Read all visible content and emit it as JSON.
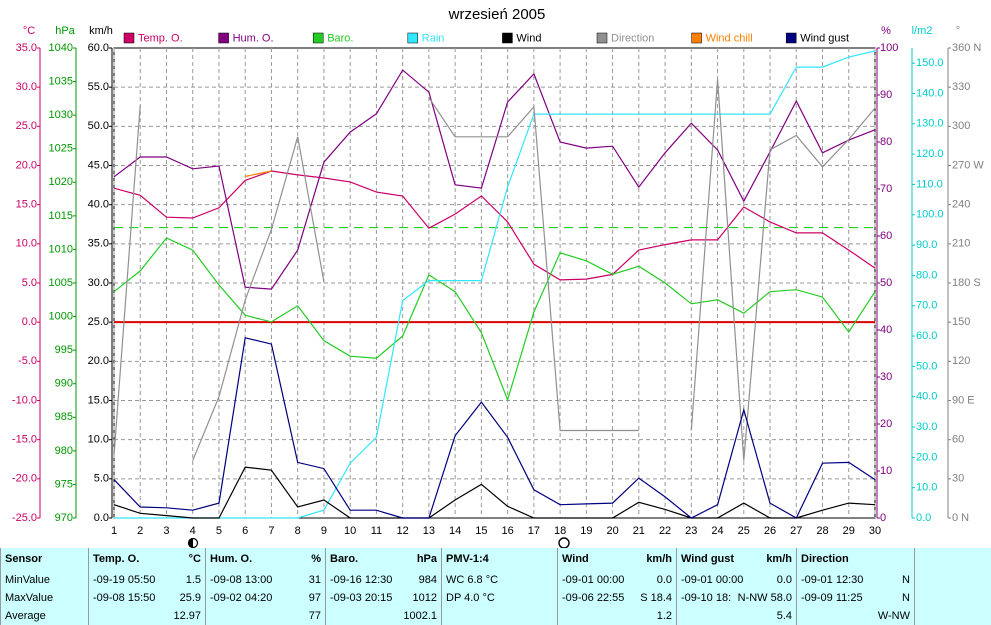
{
  "chart_data": {
    "type": "line",
    "title": "wrzesień 2005",
    "x": [
      1,
      2,
      3,
      4,
      5,
      6,
      7,
      8,
      9,
      10,
      11,
      12,
      13,
      14,
      15,
      16,
      17,
      18,
      19,
      20,
      21,
      22,
      23,
      24,
      25,
      26,
      27,
      28,
      29,
      30
    ],
    "xlim": [
      1,
      30
    ],
    "axes": [
      {
        "unit": "°C",
        "side": "left",
        "color": "#cc0066",
        "lim": [
          -25,
          35
        ],
        "ticks": [
          {
            "value": -25,
            "label": "-25.0"
          },
          {
            "value": -20,
            "label": "-20.0"
          },
          {
            "value": -15,
            "label": "-15.0"
          },
          {
            "value": -10,
            "label": "-10.0"
          },
          {
            "value": -5,
            "label": "-5.0"
          },
          {
            "value": 0,
            "label": "0.0"
          },
          {
            "value": 5,
            "label": "5.0"
          },
          {
            "value": 10,
            "label": "10.0"
          },
          {
            "value": 15,
            "label": "15.0"
          },
          {
            "value": 20,
            "label": "20.0"
          },
          {
            "value": 25,
            "label": "25.0"
          },
          {
            "value": 30,
            "label": "30.0"
          },
          {
            "value": 35,
            "label": "35.0"
          }
        ]
      },
      {
        "unit": "hPa",
        "side": "left",
        "color": "#009900",
        "lim": [
          970,
          1040
        ],
        "ticks": [
          970,
          975,
          980,
          985,
          990,
          995,
          1000,
          1005,
          1010,
          1015,
          1020,
          1025,
          1030,
          1035,
          1040
        ]
      },
      {
        "unit": "km/h",
        "side": "left",
        "color": "#000000",
        "lim": [
          0,
          60
        ],
        "grid": true,
        "ticks": [
          {
            "value": 0,
            "label": "0.0"
          },
          {
            "value": 5,
            "label": "5.0"
          },
          {
            "value": 10,
            "label": "10.0"
          },
          {
            "value": 15,
            "label": "15.0"
          },
          {
            "value": 20,
            "label": "20.0"
          },
          {
            "value": 25,
            "label": "25.0"
          },
          {
            "value": 30,
            "label": "30.0"
          },
          {
            "value": 35,
            "label": "35.0"
          },
          {
            "value": 40,
            "label": "40.0"
          },
          {
            "value": 45,
            "label": "45.0"
          },
          {
            "value": 50,
            "label": "50.0"
          },
          {
            "value": 55,
            "label": "55.0"
          },
          {
            "value": 60,
            "label": "60.0"
          }
        ]
      },
      {
        "unit": "%",
        "side": "right",
        "color": "#800080",
        "lim": [
          0,
          100
        ],
        "ticks": [
          0,
          10,
          20,
          30,
          40,
          50,
          60,
          70,
          80,
          90,
          100
        ]
      },
      {
        "unit": "l/m2",
        "side": "right",
        "color": "#00cccc",
        "lim": [
          0,
          155
        ],
        "ticks": [
          {
            "value": 0,
            "label": "0.0"
          },
          {
            "value": 10,
            "label": "10.0"
          },
          {
            "value": 20,
            "label": "20.0"
          },
          {
            "value": 30,
            "label": "30.0"
          },
          {
            "value": 40,
            "label": "40.0"
          },
          {
            "value": 50,
            "label": "50.0"
          },
          {
            "value": 60,
            "label": "60.0"
          },
          {
            "value": 70,
            "label": "70.0"
          },
          {
            "value": 80,
            "label": "80.0"
          },
          {
            "value": 90,
            "label": "90.0"
          },
          {
            "value": 100,
            "label": "100.0"
          },
          {
            "value": 110,
            "label": "110.0"
          },
          {
            "value": 120,
            "label": "120.0"
          },
          {
            "value": 130,
            "label": "130.0"
          },
          {
            "value": 140,
            "label": "140.0"
          },
          {
            "value": 150,
            "label": "150.0"
          }
        ]
      },
      {
        "unit": "°",
        "side": "right",
        "color": "#808080",
        "lim": [
          0,
          360
        ],
        "ticks": [
          {
            "value": 0,
            "label": "0 N"
          },
          30,
          60,
          {
            "value": 90,
            "label": "90 E"
          },
          120,
          150,
          {
            "value": 180,
            "label": "180 S"
          },
          210,
          240,
          {
            "value": 270,
            "label": "270 W"
          },
          300,
          330,
          {
            "value": 360,
            "label": "360 N"
          }
        ]
      }
    ],
    "reference_lines": [
      {
        "axis": 0,
        "value": 0,
        "color": "#dd0000",
        "dashed": false
      },
      {
        "axis": 1,
        "value": 1013.25,
        "color": "#00cc00",
        "dashed": true
      }
    ],
    "series": [
      {
        "name": "Temp. O.",
        "color": "#cc0066",
        "axis": 0,
        "values": [
          17.1,
          16.2,
          13.4,
          13.3,
          14.6,
          18.1,
          19.3,
          18.8,
          18.4,
          17.9,
          16.6,
          16.1,
          12.0,
          13.8,
          16.1,
          12.8,
          7.4,
          5.4,
          5.5,
          6.1,
          9.2,
          9.9,
          10.5,
          10.5,
          14.7,
          12.8,
          11.4,
          11.4,
          9.2,
          6.9
        ]
      },
      {
        "name": "Hum. O.",
        "color": "#800080",
        "axis": 3,
        "values": [
          72.6,
          76.8,
          76.8,
          74.3,
          74.9,
          49.1,
          48.7,
          57.0,
          75.7,
          82.1,
          86.0,
          95.3,
          90.6,
          70.9,
          70.2,
          88.5,
          94.5,
          80.0,
          78.7,
          79.1,
          70.4,
          77.7,
          84.0,
          78.3,
          67.4,
          77.9,
          88.7,
          77.7,
          80.4,
          82.6
        ]
      },
      {
        "name": "Baro.",
        "color": "#22cc22",
        "axis": 1,
        "values": [
          1003.7,
          1006.8,
          1011.7,
          1009.9,
          1004.7,
          1000.2,
          999.2,
          1001.6,
          996.4,
          994.1,
          993.8,
          997.1,
          1006.2,
          1003.7,
          997.6,
          987.6,
          1000.7,
          1009.5,
          1008.3,
          1006.3,
          1007.5,
          1005.0,
          1001.9,
          1002.5,
          1000.5,
          1003.7,
          1004.0,
          1002.9,
          997.7,
          1003.7
        ]
      },
      {
        "name": "Rain",
        "color": "#33e6ff",
        "axis": 4,
        "values": [
          0,
          0,
          0,
          0,
          0,
          0,
          0,
          0,
          2.6,
          18.1,
          26.6,
          71.7,
          78.3,
          78.3,
          78.3,
          109.2,
          133.2,
          133.2,
          133.2,
          133.2,
          133.2,
          133.2,
          133.2,
          133.2,
          133.2,
          133.2,
          148.7,
          148.7,
          152.0,
          154.0
        ]
      },
      {
        "name": "Wind",
        "color": "#000000",
        "axis": 2,
        "values": [
          1.7,
          0.6,
          0.3,
          0,
          0,
          6.5,
          6.1,
          1.4,
          2.3,
          0,
          0,
          0,
          0,
          2.3,
          4.3,
          1.5,
          0,
          0,
          0,
          0,
          2.0,
          1.1,
          0,
          0,
          1.9,
          0,
          0,
          1.0,
          1.9,
          1.7
        ]
      },
      {
        "name": "Direction",
        "color": "#909090",
        "axis": 5,
        "values": [
          48,
          316,
          null,
          44,
          93,
          167,
          221,
          292,
          181,
          null,
          null,
          null,
          322,
          292,
          292,
          292,
          315,
          67,
          67,
          67,
          67,
          null,
          67,
          336,
          44,
          282,
          293,
          269,
          290,
          314
        ]
      },
      {
        "name": "Wind chill",
        "color": "#ff8000",
        "axis": 0,
        "values": [
          null,
          null,
          null,
          null,
          null,
          18.6,
          19.3,
          null,
          null,
          null,
          null,
          null,
          null,
          null,
          null,
          null,
          null,
          null,
          null,
          null,
          null,
          null,
          null,
          null,
          null,
          null,
          null,
          null,
          null,
          null
        ]
      },
      {
        "name": "Wind gust",
        "color": "#000080",
        "axis": 2,
        "values": [
          4.9,
          1.4,
          1.3,
          1.0,
          1.9,
          23.0,
          22.2,
          7.1,
          6.3,
          1.0,
          1.0,
          0,
          0,
          10.5,
          14.8,
          10.3,
          3.6,
          1.7,
          1.8,
          1.9,
          5.1,
          2.7,
          0,
          1.7,
          13.8,
          1.9,
          0,
          7.0,
          7.1,
          4.9
        ]
      }
    ]
  },
  "table": {
    "header": [
      {
        "left": "Sensor"
      },
      {
        "left": "Temp. O.",
        "right": "°C"
      },
      {
        "left": "Hum. O.",
        "right": "%"
      },
      {
        "left": "Baro.",
        "right": "hPa"
      },
      {
        "left": "PMV-1:4"
      },
      {
        "left": "Wind",
        "right": "km/h"
      },
      {
        "left": "Wind gust",
        "right": "km/h"
      },
      {
        "left": "Direction"
      }
    ],
    "rows": [
      [
        {
          "left": "MinValue"
        },
        {
          "left": "-09-19 05:50",
          "right": "1.5"
        },
        {
          "left": "-09-08 13:00",
          "right": "31"
        },
        {
          "left": "-09-16 12:30",
          "right": "984"
        },
        {
          "left": "WC 6.8 °C"
        },
        {
          "left": "-09-01 00:00",
          "right": "0.0"
        },
        {
          "left": "-09-01 00:00",
          "right": "0.0"
        },
        {
          "left": "-09-01 12:30",
          "right": "N"
        }
      ],
      [
        {
          "left": "MaxValue"
        },
        {
          "left": "-09-08 15:50",
          "right": "25.9"
        },
        {
          "left": "-09-02 04:20",
          "right": "97"
        },
        {
          "left": "-09-03 20:15",
          "right": "1012"
        },
        {
          "left": "DP 4.0 °C"
        },
        {
          "left": "-09-06 22:55",
          "right": "S 18.4"
        },
        {
          "left": "-09-10 18:",
          "right": "N-NW 58.0"
        },
        {
          "left": "-09-09 11:25",
          "right": "N"
        }
      ],
      [
        {
          "left": "Average"
        },
        {
          "right": "12.97"
        },
        {
          "right": "77"
        },
        {
          "right": "1002.1"
        },
        null,
        {
          "right": "1.2"
        },
        {
          "right": "5.4"
        },
        {
          "right": "W-NW"
        }
      ]
    ]
  }
}
